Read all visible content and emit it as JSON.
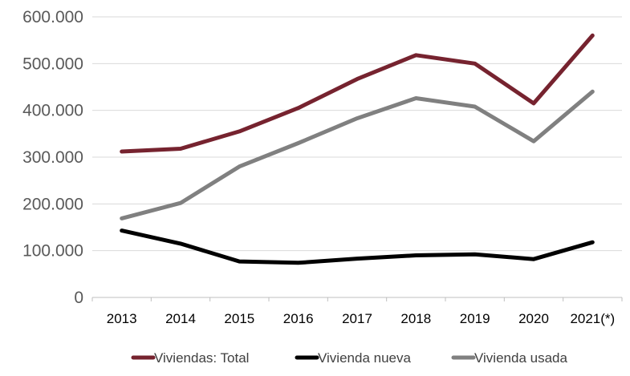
{
  "chart_data": {
    "type": "line",
    "categories": [
      "2013",
      "2014",
      "2015",
      "2016",
      "2017",
      "2018",
      "2019",
      "2020",
      "2021(*)"
    ],
    "ylim": [
      0,
      600000
    ],
    "yticks": [
      0,
      100000,
      200000,
      300000,
      400000,
      500000,
      600000
    ],
    "ytick_labels": [
      "0",
      "100.000",
      "200.000",
      "300.000",
      "400.000",
      "500.000",
      "600.000"
    ],
    "grid": true,
    "legend_position": "bottom",
    "series": [
      {
        "name": "Viviendas: Total",
        "color": "#76232f",
        "values": [
          312000,
          318000,
          355000,
          405000,
          467000,
          518000,
          500000,
          415000,
          560000
        ]
      },
      {
        "name": "Vivienda nueva",
        "color": "#000000",
        "values": [
          143000,
          115000,
          77000,
          74000,
          83000,
          90000,
          92000,
          82000,
          118000
        ]
      },
      {
        "name": "Vivienda usada",
        "color": "#808080",
        "values": [
          169000,
          202000,
          280000,
          330000,
          383000,
          426000,
          408000,
          334000,
          440000
        ]
      }
    ]
  }
}
